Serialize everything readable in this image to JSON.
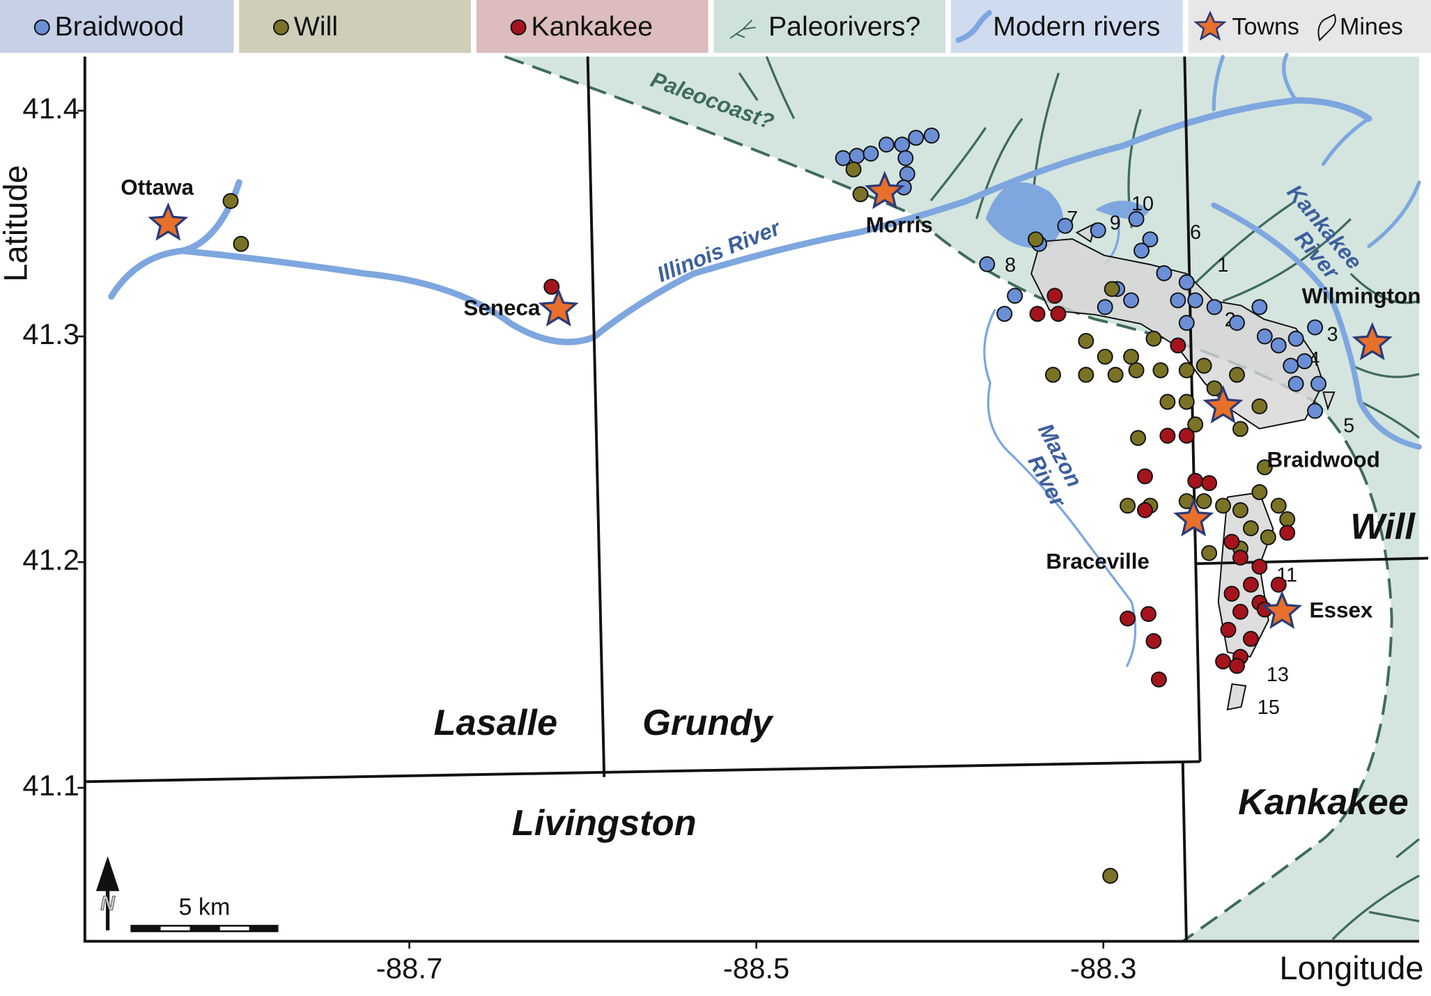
{
  "axes": {
    "xlabel": "Longitude",
    "ylabel": "Latitude",
    "xlim": [
      -88.887,
      -88.118
    ],
    "ylim": [
      41.032,
      41.424
    ],
    "xticks": [
      -88.7,
      -88.5,
      -88.3
    ],
    "yticks": [
      41.1,
      41.2,
      41.3,
      41.4
    ]
  },
  "groups": [
    {
      "name": "Braidwood",
      "color": "#6b8fd6",
      "points": [
        [
          -88.45,
          41.379
        ],
        [
          -88.442,
          41.38
        ],
        [
          -88.434,
          41.381
        ],
        [
          -88.425,
          41.385
        ],
        [
          -88.416,
          41.385
        ],
        [
          -88.408,
          41.388
        ],
        [
          -88.399,
          41.389
        ],
        [
          -88.414,
          41.379
        ],
        [
          -88.413,
          41.372
        ],
        [
          -88.415,
          41.366
        ],
        [
          -88.367,
          41.332
        ],
        [
          -88.357,
          41.31
        ],
        [
          -88.351,
          41.318
        ],
        [
          -88.337,
          41.341
        ],
        [
          -88.322,
          41.349
        ],
        [
          -88.303,
          41.347
        ],
        [
          -88.281,
          41.352
        ],
        [
          -88.273,
          41.343
        ],
        [
          -88.278,
          41.338
        ],
        [
          -88.265,
          41.328
        ],
        [
          -88.252,
          41.324
        ],
        [
          -88.247,
          41.316
        ],
        [
          -88.236,
          41.313
        ],
        [
          -88.223,
          41.306
        ],
        [
          -88.21,
          41.313
        ],
        [
          -88.207,
          41.3
        ],
        [
          -88.199,
          41.296
        ],
        [
          -88.189,
          41.299
        ],
        [
          -88.178,
          41.304
        ],
        [
          -88.184,
          41.289
        ],
        [
          -88.192,
          41.287
        ],
        [
          -88.176,
          41.279
        ],
        [
          -88.189,
          41.279
        ],
        [
          -88.178,
          41.267
        ],
        [
          -88.292,
          41.321
        ],
        [
          -88.284,
          41.316
        ],
        [
          -88.299,
          41.313
        ],
        [
          -88.257,
          41.316
        ],
        [
          -88.252,
          41.306
        ]
      ]
    },
    {
      "name": "Will",
      "color": "#7a7326",
      "points": [
        [
          -88.444,
          41.374
        ],
        [
          -88.44,
          41.363
        ],
        [
          -88.803,
          41.36
        ],
        [
          -88.797,
          41.341
        ],
        [
          -88.339,
          41.343
        ],
        [
          -88.295,
          41.321
        ],
        [
          -88.31,
          41.298
        ],
        [
          -88.329,
          41.283
        ],
        [
          -88.31,
          41.283
        ],
        [
          -88.293,
          41.283
        ],
        [
          -88.281,
          41.285
        ],
        [
          -88.267,
          41.285
        ],
        [
          -88.252,
          41.285
        ],
        [
          -88.242,
          41.287
        ],
        [
          -88.299,
          41.291
        ],
        [
          -88.284,
          41.291
        ],
        [
          -88.271,
          41.299
        ],
        [
          -88.263,
          41.271
        ],
        [
          -88.252,
          41.271
        ],
        [
          -88.247,
          41.261
        ],
        [
          -88.236,
          41.277
        ],
        [
          -88.223,
          41.283
        ],
        [
          -88.21,
          41.269
        ],
        [
          -88.221,
          41.259
        ],
        [
          -88.28,
          41.255
        ],
        [
          -88.252,
          41.227
        ],
        [
          -88.242,
          41.227
        ],
        [
          -88.231,
          41.225
        ],
        [
          -88.221,
          41.223
        ],
        [
          -88.21,
          41.231
        ],
        [
          -88.199,
          41.225
        ],
        [
          -88.194,
          41.219
        ],
        [
          -88.215,
          41.215
        ],
        [
          -88.205,
          41.211
        ],
        [
          -88.221,
          41.206
        ],
        [
          -88.239,
          41.204
        ],
        [
          -88.286,
          41.225
        ],
        [
          -88.207,
          41.242
        ],
        [
          -88.296,
          41.061
        ],
        [
          -88.273,
          41.225
        ]
      ]
    },
    {
      "name": "Kankakee",
      "color": "#a5141c",
      "points": [
        [
          -88.618,
          41.322
        ],
        [
          -88.338,
          41.31
        ],
        [
          -88.326,
          41.31
        ],
        [
          -88.328,
          41.318
        ],
        [
          -88.257,
          41.296
        ],
        [
          -88.263,
          41.256
        ],
        [
          -88.252,
          41.256
        ],
        [
          -88.276,
          41.238
        ],
        [
          -88.247,
          41.236
        ],
        [
          -88.239,
          41.235
        ],
        [
          -88.276,
          41.223
        ],
        [
          -88.286,
          41.175
        ],
        [
          -88.274,
          41.177
        ],
        [
          -88.271,
          41.165
        ],
        [
          -88.268,
          41.148
        ],
        [
          -88.194,
          41.213
        ],
        [
          -88.226,
          41.209
        ],
        [
          -88.221,
          41.202
        ],
        [
          -88.21,
          41.198
        ],
        [
          -88.215,
          41.19
        ],
        [
          -88.226,
          41.186
        ],
        [
          -88.221,
          41.178
        ],
        [
          -88.21,
          41.182
        ],
        [
          -88.228,
          41.17
        ],
        [
          -88.215,
          41.166
        ],
        [
          -88.221,
          41.158
        ],
        [
          -88.231,
          41.156
        ],
        [
          -88.223,
          41.154
        ],
        [
          -88.207,
          41.179
        ],
        [
          -88.199,
          41.19
        ]
      ]
    }
  ],
  "legend_extra": [
    "Paleorivers?",
    "Modern rivers",
    "Towns",
    "Mines"
  ],
  "towns": [
    {
      "name": "Ottawa",
      "lon": -88.839,
      "lat": 41.35
    },
    {
      "name": "Seneca",
      "lon": -88.614,
      "lat": 41.312
    },
    {
      "name": "Morris",
      "lon": -88.426,
      "lat": 41.364
    },
    {
      "name": "Wilmington",
      "lon": -88.145,
      "lat": 41.297
    },
    {
      "name": "Braidwood",
      "lon": -88.231,
      "lat": 41.269
    },
    {
      "name": "Braceville",
      "lon": -88.248,
      "lat": 41.219
    },
    {
      "name": "Essex",
      "lon": -88.197,
      "lat": 41.178
    }
  ],
  "counties": [
    "Lasalle",
    "Grundy",
    "Livingston",
    "Will",
    "Kankakee"
  ],
  "rivers": [
    [
      "Illinois River"
    ],
    [
      "Mazon",
      "River"
    ],
    [
      "Kankakee",
      "River"
    ]
  ],
  "paleocoast": "Paleocoast?",
  "mines": [
    "1",
    "2",
    "3",
    "4",
    "5",
    "6",
    "7",
    "8",
    "9",
    "10",
    "11",
    "13",
    "15"
  ],
  "scale": "5 km",
  "north": "N"
}
